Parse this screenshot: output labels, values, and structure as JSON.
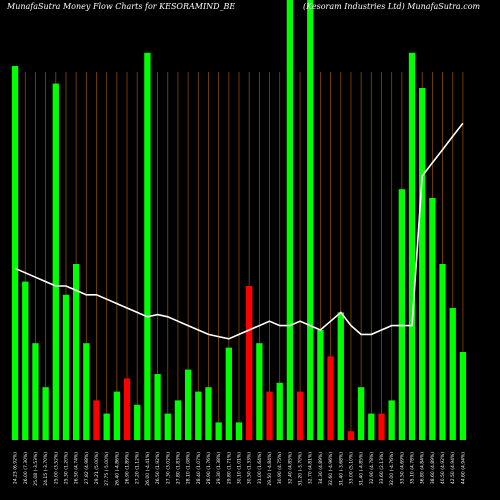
{
  "chart_data": {
    "type": "bar",
    "title_left": "MunafaSutra  Money Flow  Charts for KESORAMIND_BE",
    "title_right": "(Kesoram Industries Ltd) MunafaSutra.com",
    "ylim": [
      0,
      100
    ],
    "colors": {
      "up": "#00ff00",
      "down": "#ff0000",
      "grid": "#8a4a00",
      "line": "#ffffff",
      "background": "#000000"
    },
    "categories": [
      "24.23 (6.92%)",
      "26.00 (7.30%)",
      "25.08 (-3.53%)",
      "24.15 (-3.70%)",
      "25.00 (3.52%)",
      "25.30 (1.20%)",
      "26.50 (4.74%)",
      "27.82 (4.98%)",
      "29.21 (5.00%)",
      "27.75 (-5.00%)",
      "26.40 (-4.86%)",
      "26.90 (1.89%)",
      "27.20 (1.12%)",
      "26.00 (-4.41%)",
      "26.50 (1.92%)",
      "27.30 (3.02%)",
      "27.80 (1.83%)",
      "28.10 (1.08%)",
      "28.40 (1.07%)",
      "28.90 (1.76%)",
      "29.30 (1.38%)",
      "29.80 (1.71%)",
      "30.10 (1.01%)",
      "30.50 (1.33%)",
      "31.00 (1.64%)",
      "29.50 (-4.84%)",
      "30.90 (4.75%)",
      "32.40 (4.85%)",
      "31.20 (-3.70%)",
      "32.70 (4.81%)",
      "34.30 (4.89%)",
      "32.60 (-4.96%)",
      "31.40 (-3.68%)",
      "33.00 (5.10%)",
      "31.40 (-4.85%)",
      "32.90 (4.78%)",
      "33.60 (2.13%)",
      "32.00 (-4.76%)",
      "33.50 (4.69%)",
      "35.10 (4.78%)",
      "36.80 (4.84%)",
      "38.60 (4.89%)",
      "40.50 (4.92%)",
      "42.50 (4.94%)",
      "44.60 (4.94%)"
    ],
    "values": [
      85,
      36,
      22,
      12,
      81,
      33,
      40,
      22,
      9,
      6,
      11,
      14,
      8,
      88,
      15,
      6,
      9,
      16,
      11,
      12,
      4,
      21,
      4,
      35,
      22,
      11,
      13,
      100,
      11,
      100,
      25,
      19,
      29,
      2,
      12,
      6,
      6,
      9,
      57,
      88,
      80,
      55,
      40,
      30,
      20
    ],
    "directions": [
      "up",
      "up",
      "up",
      "up",
      "up",
      "up",
      "up",
      "up",
      "down",
      "up",
      "up",
      "down",
      "up",
      "up",
      "up",
      "up",
      "up",
      "up",
      "up",
      "up",
      "up",
      "up",
      "up",
      "down",
      "up",
      "down",
      "up",
      "up",
      "down",
      "up",
      "up",
      "down",
      "up",
      "down",
      "up",
      "up",
      "down",
      "up",
      "up",
      "up",
      "up",
      "up",
      "up",
      "up",
      "up"
    ],
    "line": [
      39,
      38,
      37,
      36,
      35,
      35,
      34,
      33,
      33,
      32,
      31,
      30,
      29,
      28,
      28.5,
      28,
      27,
      26,
      25,
      24,
      23.5,
      23,
      24,
      25,
      26,
      27,
      26,
      26,
      27,
      26,
      25,
      27,
      29,
      26,
      24,
      24,
      25,
      26,
      26,
      26,
      60,
      63,
      66,
      69,
      72
    ]
  }
}
